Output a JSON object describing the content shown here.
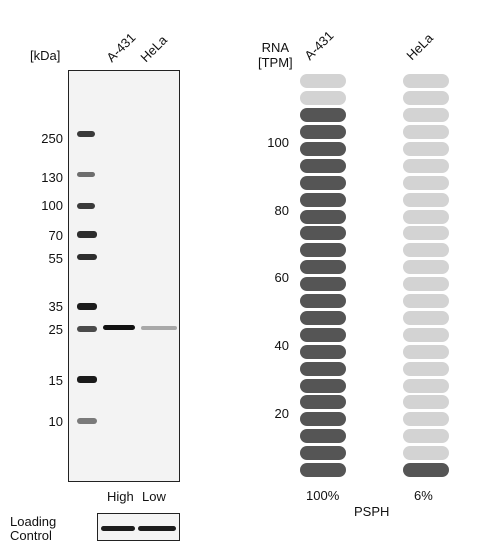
{
  "blot": {
    "unit_label": "[kDa]",
    "lanes": [
      "A-431",
      "HeLa"
    ],
    "ladder": [
      "250",
      "130",
      "100",
      "70",
      "55",
      "35",
      "25",
      "15",
      "10"
    ],
    "expression_labels": [
      "High",
      "Low"
    ],
    "loading_control_label": [
      "Loading",
      "Control"
    ]
  },
  "rna": {
    "title_lines": [
      "RNA",
      "[TPM]"
    ],
    "gene": "PSPH"
  },
  "chart_data": {
    "type": "bar",
    "ylabel": "RNA [TPM]",
    "yticks": [
      "20",
      "40",
      "60",
      "80",
      "100"
    ],
    "categories": [
      "A-431",
      "HeLa"
    ],
    "values_percent": [
      100,
      6
    ],
    "value_labels": [
      "100%",
      "6%"
    ],
    "segments_total": 24,
    "filled_segments": [
      22,
      1
    ],
    "colors": {
      "filled": "#555555",
      "empty": "#d3d3d3"
    }
  }
}
